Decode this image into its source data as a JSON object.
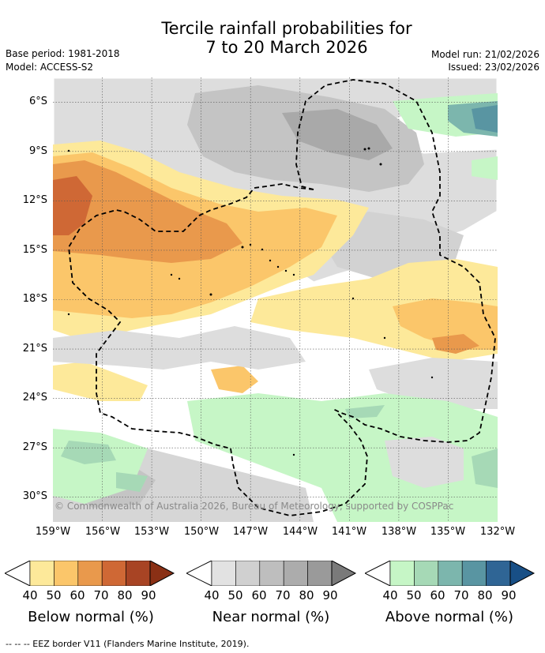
{
  "title": {
    "line1": "Tercile rainfall probabilities for",
    "line2": "7 to 20 March 2026"
  },
  "meta": {
    "base_period": "Base period: 1981-2018",
    "model": "Model: ACCESS-S2",
    "model_run": "Model run: 21/02/2026",
    "issued": "Issued: 23/02/2026"
  },
  "map": {
    "y_ticks": [
      "6°S",
      "9°S",
      "12°S",
      "15°S",
      "18°S",
      "21°S",
      "24°S",
      "27°S",
      "30°S"
    ],
    "x_ticks": [
      "159°W",
      "156°W",
      "153°W",
      "150°W",
      "147°W",
      "144°W",
      "141°W",
      "138°W",
      "135°W",
      "132°W"
    ],
    "lat_range": [
      -31.5,
      -4.5
    ],
    "lon_range": [
      -159,
      -132
    ],
    "copyright": "© Commonwealth of Australia 2026, Bureau of Meteorology, supported by COSPPac"
  },
  "colorbars": {
    "below": {
      "label": "Below normal (%)",
      "ticks": [
        "40",
        "50",
        "60",
        "70",
        "80",
        "90"
      ],
      "colors": [
        "#fde99a",
        "#fbc66a",
        "#e9994c",
        "#cf6835",
        "#a84424",
        "#8a3015"
      ]
    },
    "near": {
      "label": "Near normal (%)",
      "ticks": [
        "40",
        "50",
        "60",
        "70",
        "80",
        "90"
      ],
      "colors": [
        "#e2e2e2",
        "#d0d0d0",
        "#bebebe",
        "#acacac",
        "#9a9a9a",
        "#7a7a7a"
      ]
    },
    "above": {
      "label": "Above normal (%)",
      "ticks": [
        "40",
        "50",
        "60",
        "70",
        "80",
        "90"
      ],
      "colors": [
        "#c6f6c6",
        "#a6d9b6",
        "#7cb6ad",
        "#5995a2",
        "#2f6595",
        "#184f86"
      ]
    }
  },
  "footer": "-- -- -- EEZ border V11 (Flanders Marine Institute, 2019)."
}
